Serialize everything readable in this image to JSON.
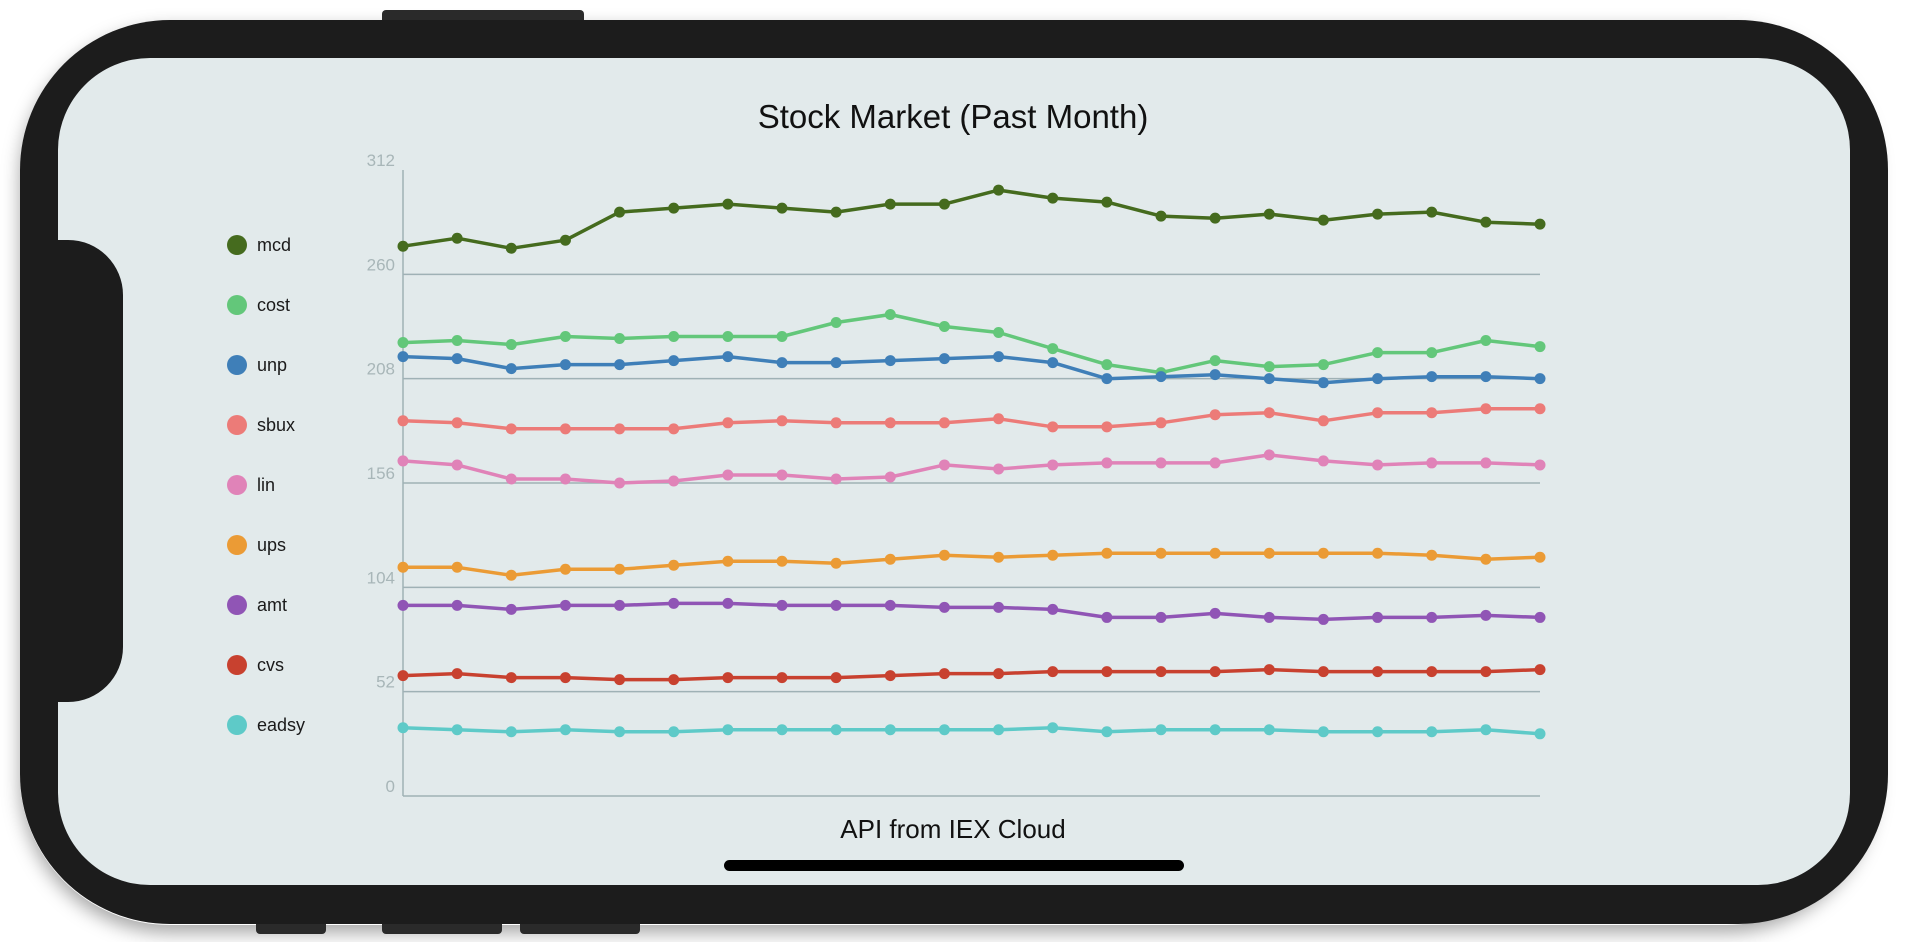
{
  "chart_data": {
    "type": "line",
    "title": "Stock Market (Past Month)",
    "footer": "API from IEX Cloud",
    "ylim": [
      0,
      312
    ],
    "yticks": [
      "0",
      "52",
      "104",
      "156",
      "208",
      "260",
      "312"
    ],
    "legend_position": "left",
    "grid": "horizontal",
    "series": [
      {
        "name": "mcd",
        "color": "#456b1e",
        "values": [
          274,
          278,
          273,
          277,
          291,
          293,
          295,
          293,
          291,
          295,
          295,
          302,
          298,
          296,
          289,
          288,
          290,
          287,
          290,
          291,
          286,
          285
        ]
      },
      {
        "name": "cost",
        "color": "#63c77a",
        "values": [
          226,
          227,
          225,
          229,
          228,
          229,
          229,
          229,
          236,
          240,
          234,
          231,
          223,
          215,
          211,
          217,
          214,
          215,
          221,
          221,
          227,
          224
        ]
      },
      {
        "name": "unp",
        "color": "#3f7fb8",
        "values": [
          219,
          218,
          213,
          215,
          215,
          217,
          219,
          216,
          216,
          217,
          218,
          219,
          216,
          208,
          209,
          210,
          208,
          206,
          208,
          209,
          209,
          208
        ]
      },
      {
        "name": "sbux",
        "color": "#ec7b78",
        "values": [
          187,
          186,
          183,
          183,
          183,
          183,
          186,
          187,
          186,
          186,
          186,
          188,
          184,
          184,
          186,
          190,
          191,
          187,
          191,
          191,
          193,
          193
        ]
      },
      {
        "name": "lin",
        "color": "#e083b8",
        "values": [
          167,
          165,
          158,
          158,
          156,
          157,
          160,
          160,
          158,
          159,
          165,
          163,
          165,
          166,
          166,
          166,
          170,
          167,
          165,
          166,
          166,
          165
        ]
      },
      {
        "name": "ups",
        "color": "#eb9b35",
        "values": [
          114,
          114,
          110,
          113,
          113,
          115,
          117,
          117,
          116,
          118,
          120,
          119,
          120,
          121,
          121,
          121,
          121,
          121,
          121,
          120,
          118,
          119
        ]
      },
      {
        "name": "amt",
        "color": "#9055b5",
        "values": [
          95,
          95,
          93,
          95,
          95,
          96,
          96,
          95,
          95,
          95,
          94,
          94,
          93,
          89,
          89,
          91,
          89,
          88,
          89,
          89,
          90,
          89
        ]
      },
      {
        "name": "cvs",
        "color": "#c8412f",
        "values": [
          60,
          61,
          59,
          59,
          58,
          58,
          59,
          59,
          59,
          60,
          61,
          61,
          62,
          62,
          62,
          62,
          63,
          62,
          62,
          62,
          62,
          63
        ]
      },
      {
        "name": "eadsy",
        "color": "#5ecac8",
        "values": [
          34,
          33,
          32,
          33,
          32,
          32,
          33,
          33,
          33,
          33,
          33,
          33,
          34,
          32,
          33,
          33,
          33,
          32,
          32,
          32,
          33,
          31
        ]
      }
    ]
  }
}
